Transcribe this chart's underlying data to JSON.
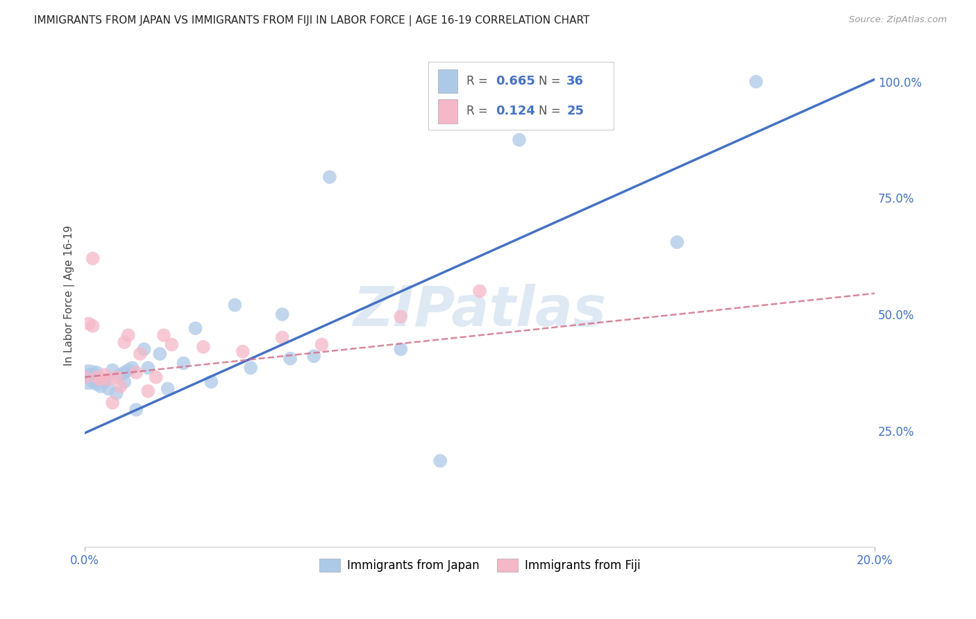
{
  "title": "IMMIGRANTS FROM JAPAN VS IMMIGRANTS FROM FIJI IN LABOR FORCE | AGE 16-19 CORRELATION CHART",
  "source": "Source: ZipAtlas.com",
  "ylabel": "In Labor Force | Age 16-19",
  "xlim": [
    0.0,
    0.2
  ],
  "ylim": [
    0.0,
    1.08
  ],
  "ytick_positions": [
    0.25,
    0.5,
    0.75,
    1.0
  ],
  "xtick_positions": [
    0.0,
    0.2
  ],
  "japan_R": "0.665",
  "japan_N": "36",
  "fiji_R": "0.124",
  "fiji_N": "25",
  "japan_color": "#adc9e8",
  "fiji_color": "#f5b8c8",
  "japan_line_color": "#4472c4",
  "fiji_line_color": "#d4708a",
  "watermark": "ZIPatlas",
  "japan_scatter_x": [
    0.001,
    0.001,
    0.002,
    0.002,
    0.003,
    0.003,
    0.004,
    0.005,
    0.005,
    0.006,
    0.007,
    0.008,
    0.009,
    0.01,
    0.01,
    0.011,
    0.012,
    0.013,
    0.015,
    0.016,
    0.019,
    0.021,
    0.025,
    0.028,
    0.032,
    0.038,
    0.042,
    0.05,
    0.052,
    0.058,
    0.062,
    0.08,
    0.09,
    0.11,
    0.15,
    0.17
  ],
  "japan_scatter_y": [
    0.365,
    0.37,
    0.37,
    0.355,
    0.35,
    0.375,
    0.345,
    0.36,
    0.355,
    0.34,
    0.38,
    0.33,
    0.37,
    0.355,
    0.375,
    0.38,
    0.385,
    0.295,
    0.425,
    0.385,
    0.415,
    0.34,
    0.395,
    0.47,
    0.355,
    0.52,
    0.385,
    0.5,
    0.405,
    0.41,
    0.795,
    0.425,
    0.185,
    0.875,
    0.655,
    1.0
  ],
  "japan_scatter_size": [
    700,
    200,
    200,
    200,
    200,
    200,
    200,
    200,
    200,
    200,
    200,
    200,
    200,
    200,
    200,
    200,
    200,
    200,
    200,
    200,
    200,
    200,
    200,
    200,
    200,
    200,
    200,
    200,
    200,
    200,
    200,
    200,
    200,
    200,
    200,
    200
  ],
  "fiji_scatter_x": [
    0.0,
    0.001,
    0.002,
    0.002,
    0.003,
    0.004,
    0.005,
    0.006,
    0.007,
    0.008,
    0.009,
    0.01,
    0.011,
    0.013,
    0.014,
    0.016,
    0.018,
    0.02,
    0.022,
    0.03,
    0.04,
    0.05,
    0.06,
    0.08,
    0.1
  ],
  "fiji_scatter_y": [
    0.365,
    0.48,
    0.62,
    0.475,
    0.365,
    0.36,
    0.37,
    0.36,
    0.31,
    0.365,
    0.345,
    0.44,
    0.455,
    0.375,
    0.415,
    0.335,
    0.365,
    0.455,
    0.435,
    0.43,
    0.42,
    0.45,
    0.435,
    0.495,
    0.55
  ],
  "fiji_scatter_size": [
    200,
    200,
    200,
    200,
    200,
    200,
    200,
    200,
    200,
    200,
    200,
    200,
    200,
    200,
    200,
    200,
    200,
    200,
    200,
    200,
    200,
    200,
    200,
    200,
    200
  ],
  "japan_line_x": [
    0.0,
    0.2
  ],
  "japan_line_y": [
    0.245,
    1.005
  ],
  "fiji_line_x": [
    0.0,
    0.2
  ],
  "fiji_line_y": [
    0.365,
    0.545
  ]
}
